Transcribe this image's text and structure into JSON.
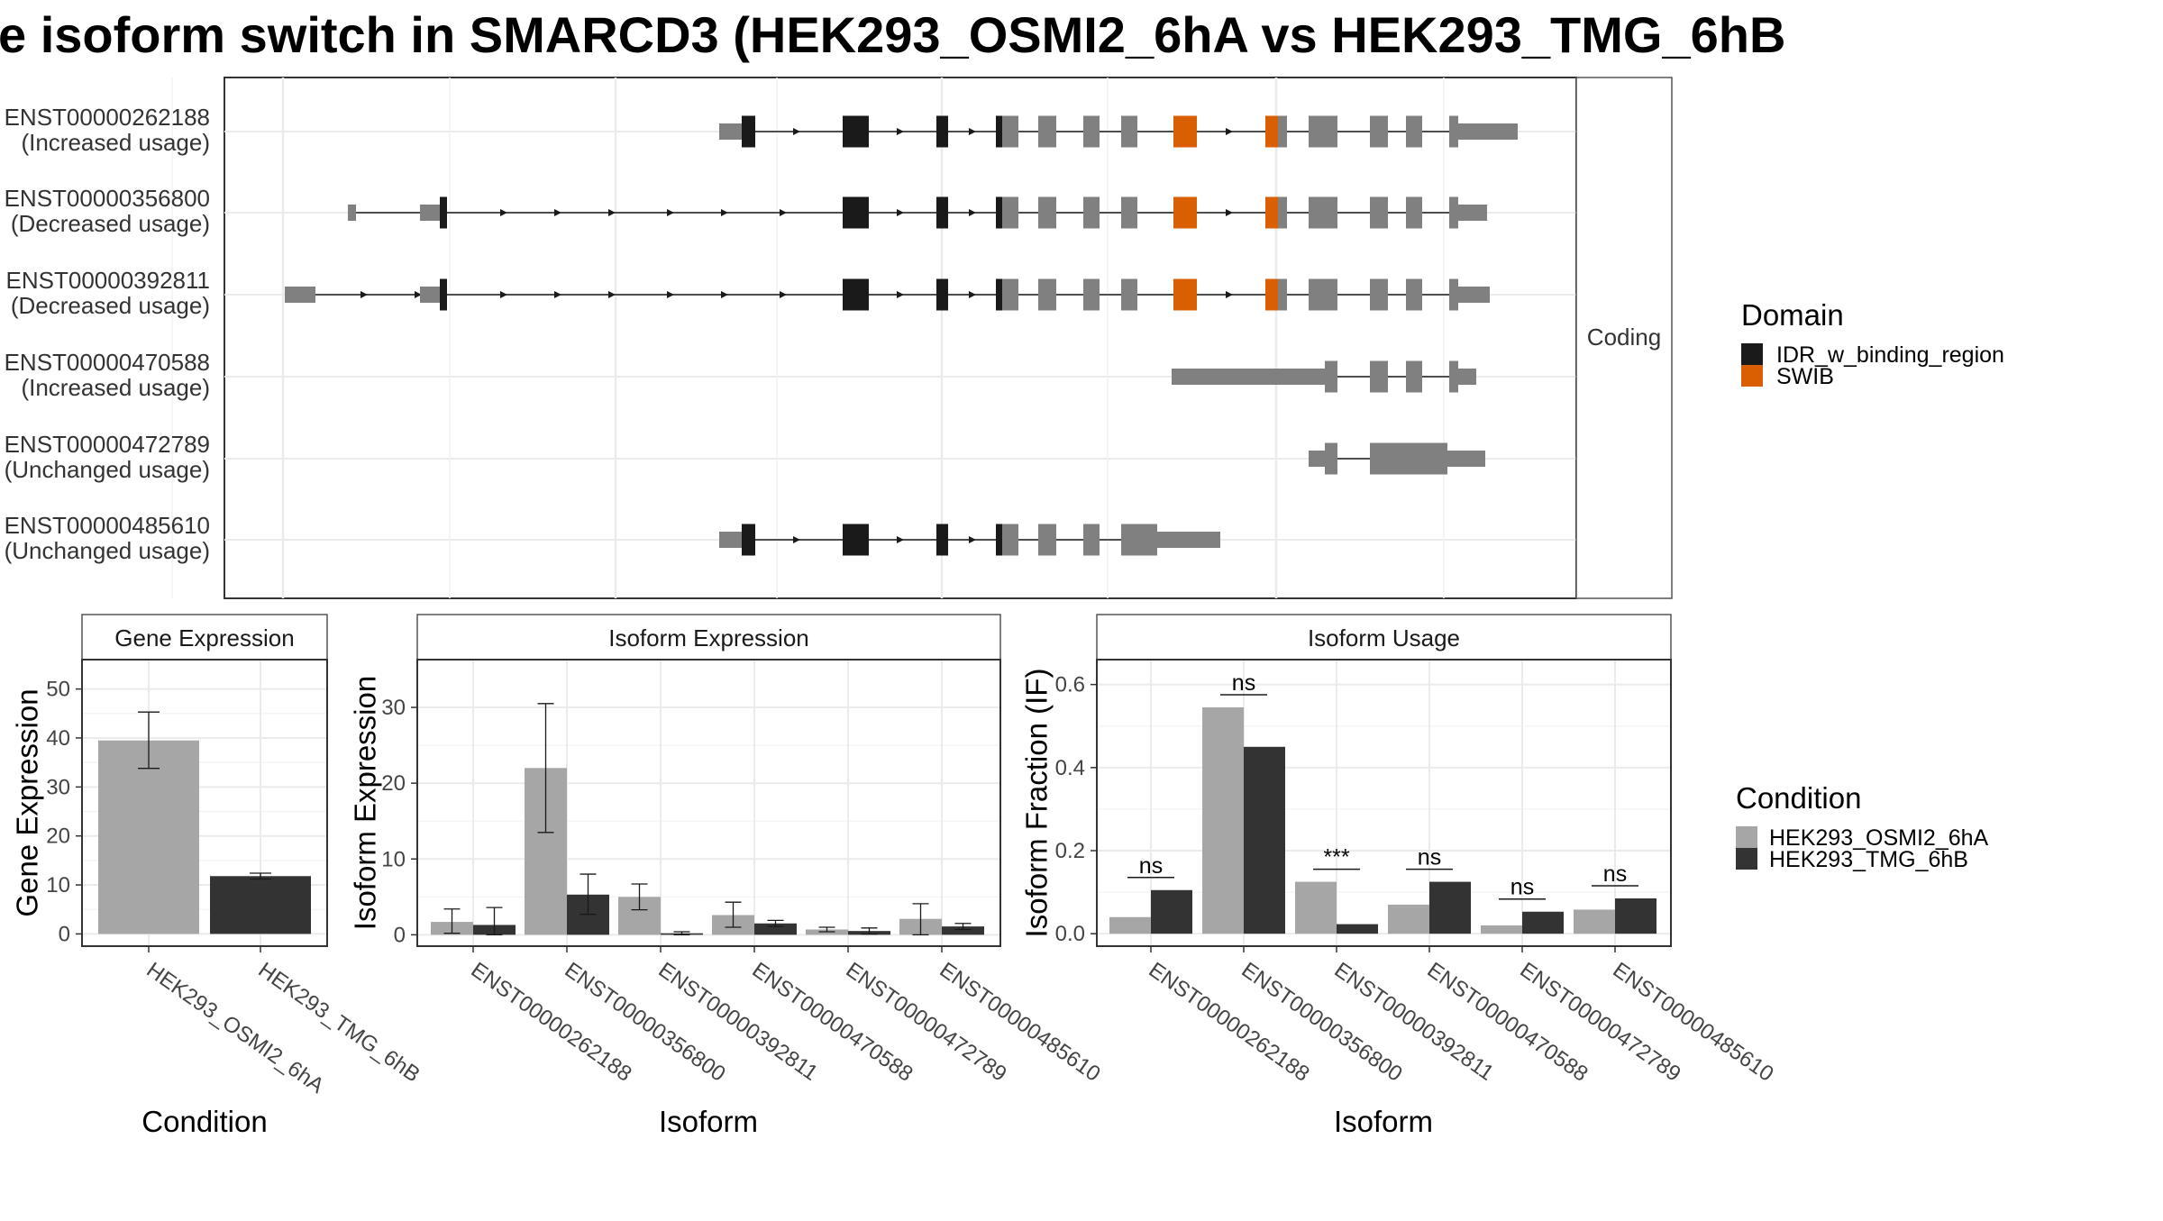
{
  "title": "e isoform switch in SMARCD3 (HEK293_OSMI2_6hA vs HEK293_TMG_6hB",
  "structure": {
    "strip_label": "Coding",
    "transcripts": [
      {
        "id": "ENST00000262188",
        "usage": "(Increased usage)"
      },
      {
        "id": "ENST00000356800",
        "usage": "(Decreased usage)"
      },
      {
        "id": "ENST00000392811",
        "usage": "(Decreased usage)"
      },
      {
        "id": "ENST00000470588",
        "usage": "(Increased usage)"
      },
      {
        "id": "ENST00000472789",
        "usage": "(Unchanged usage)"
      },
      {
        "id": "ENST00000485610",
        "usage": "(Unchanged usage)"
      }
    ]
  },
  "domain_legend": {
    "title": "Domain",
    "items": [
      {
        "label": "IDR_w_binding_region",
        "color": "#1a1a1a"
      },
      {
        "label": "SWIB",
        "color": "#d95f02"
      }
    ]
  },
  "condition_legend": {
    "title": "Condition",
    "items": [
      {
        "label": "HEK293_OSMI2_6hA",
        "color": "#a6a6a6"
      },
      {
        "label": "HEK293_TMG_6hB",
        "color": "#333333"
      }
    ]
  },
  "colors": {
    "utr": "#808080",
    "idr": "#1a1a1a",
    "swib": "#d95f02",
    "cond_a": "#a6a6a6",
    "cond_b": "#333333"
  },
  "chart_data": [
    {
      "type": "bar",
      "strip": "Gene Expression",
      "xlabel": "Condition",
      "ylabel": "Gene Expression",
      "categories": [
        "HEK293_OSMI2_6hA",
        "HEK293_TMG_6hB"
      ],
      "values": [
        39.5,
        11.8
      ],
      "error_low": [
        33.8,
        11.2
      ],
      "error_high": [
        45.3,
        12.4
      ],
      "yticks": [
        0,
        10,
        20,
        30,
        40,
        50
      ],
      "ylim": [
        -2.5,
        56
      ]
    },
    {
      "type": "bar",
      "strip": "Isoform Expression",
      "xlabel": "Isoform",
      "ylabel": "Isoform Expression",
      "categories": [
        "ENST00000262188",
        "ENST00000356800",
        "ENST00000392811",
        "ENST00000470588",
        "ENST00000472789",
        "ENST00000485610"
      ],
      "series": [
        {
          "values": [
            1.7,
            22.0,
            5.0,
            2.6,
            0.7,
            2.1
          ],
          "error_low": [
            0.2,
            13.5,
            3.3,
            1.0,
            0.4,
            0.0
          ],
          "error_high": [
            3.4,
            30.5,
            6.7,
            4.3,
            1.0,
            4.1
          ]
        },
        {
          "values": [
            1.3,
            5.3,
            0.2,
            1.5,
            0.5,
            1.1
          ],
          "error_low": [
            0.0,
            2.7,
            0.0,
            1.1,
            0.1,
            0.7
          ],
          "error_high": [
            3.6,
            8.0,
            0.4,
            1.9,
            0.9,
            1.5
          ]
        }
      ],
      "yticks": [
        0,
        10,
        20,
        30
      ],
      "ylim": [
        -1.5,
        36.3
      ]
    },
    {
      "type": "bar",
      "strip": "Isoform Usage",
      "xlabel": "Isoform",
      "ylabel": "Isoform Fraction (IF)",
      "categories": [
        "ENST00000262188",
        "ENST00000356800",
        "ENST00000392811",
        "ENST00000470588",
        "ENST00000472789",
        "ENST00000485610"
      ],
      "series": [
        {
          "values": [
            0.04,
            0.545,
            0.125,
            0.07,
            0.02,
            0.058
          ]
        },
        {
          "values": [
            0.105,
            0.45,
            0.023,
            0.125,
            0.053,
            0.085
          ]
        }
      ],
      "significance": [
        "ns",
        "ns",
        "***",
        "ns",
        "ns",
        "ns"
      ],
      "yticks": [
        0.0,
        0.2,
        0.4,
        0.6
      ],
      "ylim": [
        -0.03,
        0.66
      ]
    }
  ]
}
